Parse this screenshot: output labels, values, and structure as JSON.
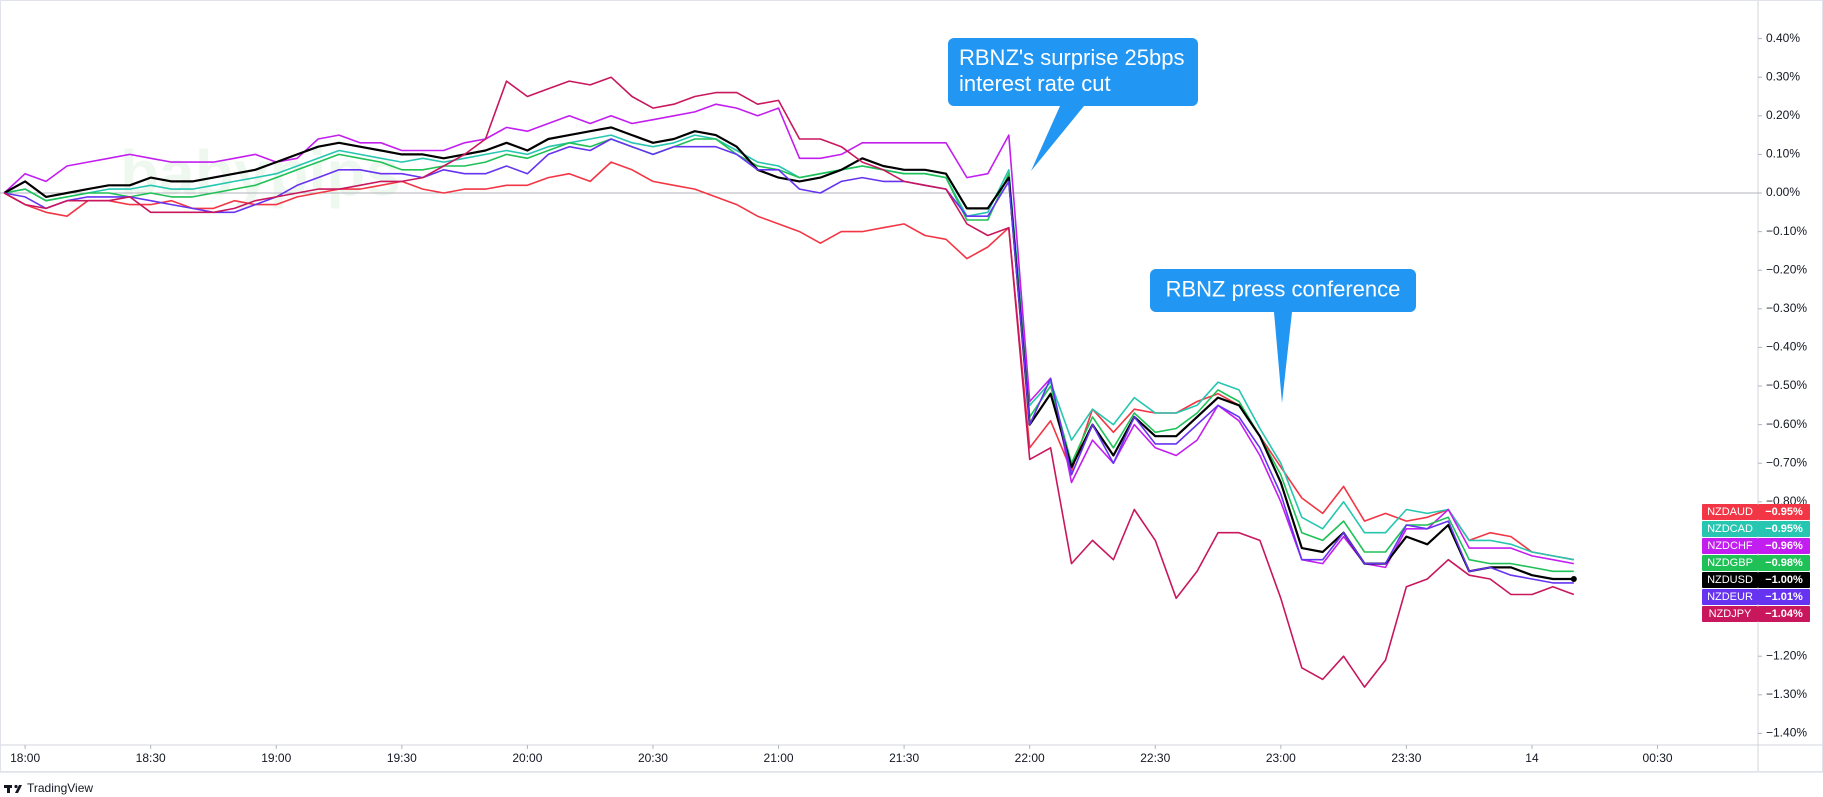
{
  "chart_data": {
    "type": "line",
    "watermark": "babypips",
    "footer": "TradingView",
    "x": [
      -5,
      0,
      5,
      10,
      15,
      20,
      25,
      30,
      35,
      40,
      45,
      50,
      55,
      60,
      65,
      70,
      75,
      80,
      85,
      90,
      95,
      100,
      105,
      110,
      115,
      120,
      125,
      130,
      135,
      140,
      145,
      150,
      155,
      160,
      165,
      170,
      175,
      180,
      185,
      190,
      195,
      200,
      205,
      210,
      215,
      220,
      225,
      230,
      235,
      240,
      245,
      250,
      255,
      260,
      265,
      270,
      275,
      280,
      285,
      290,
      295,
      300,
      305,
      310,
      315,
      320,
      325,
      330,
      335,
      340,
      345,
      350,
      355,
      360,
      365,
      370
    ],
    "xlim": [
      -6,
      414
    ],
    "xticks": [
      {
        "value": 0,
        "label": "18:00"
      },
      {
        "value": 30,
        "label": "18:30"
      },
      {
        "value": 60,
        "label": "19:00"
      },
      {
        "value": 90,
        "label": "19:30"
      },
      {
        "value": 120,
        "label": "20:00"
      },
      {
        "value": 150,
        "label": "20:30"
      },
      {
        "value": 180,
        "label": "21:00"
      },
      {
        "value": 210,
        "label": "21:30"
      },
      {
        "value": 240,
        "label": "22:00"
      },
      {
        "value": 270,
        "label": "22:30"
      },
      {
        "value": 300,
        "label": "23:00"
      },
      {
        "value": 330,
        "label": "23:30"
      },
      {
        "value": 360,
        "label": "14"
      },
      {
        "value": 390,
        "label": "00:30"
      }
    ],
    "ylim": [
      -1.43,
      0.5
    ],
    "yticks": [
      {
        "value": 0.4,
        "label": "0.40%"
      },
      {
        "value": 0.3,
        "label": "0.30%"
      },
      {
        "value": 0.2,
        "label": "0.20%"
      },
      {
        "value": 0.1,
        "label": "0.10%"
      },
      {
        "value": 0,
        "label": "0.00%"
      },
      {
        "value": -0.1,
        "label": "−0.10%"
      },
      {
        "value": -0.2,
        "label": "−0.20%"
      },
      {
        "value": -0.3,
        "label": "−0.30%"
      },
      {
        "value": -0.4,
        "label": "−0.40%"
      },
      {
        "value": -0.5,
        "label": "−0.50%"
      },
      {
        "value": -0.6,
        "label": "−0.60%"
      },
      {
        "value": -0.7,
        "label": "−0.70%"
      },
      {
        "value": -0.8,
        "label": "−0.80%"
      },
      {
        "value": -1.2,
        "label": "−1.20%"
      },
      {
        "value": -1.3,
        "label": "−1.30%"
      },
      {
        "value": -1.4,
        "label": "−1.40%"
      }
    ],
    "grid": false,
    "annotations": [
      {
        "lines": [
          "RBNZ's surprise 25bps",
          "interest rate cut"
        ]
      },
      {
        "lines": [
          "RBNZ press conference"
        ]
      }
    ],
    "series": [
      {
        "name": "NZDAUD",
        "color": "#f23645",
        "last_value_label": "−0.95%",
        "values": [
          0,
          -0.03,
          -0.05,
          -0.06,
          -0.02,
          -0.02,
          -0.03,
          -0.03,
          -0.02,
          -0.04,
          -0.04,
          -0.02,
          -0.03,
          -0.03,
          -0.01,
          0,
          0.01,
          0.01,
          0.02,
          0.03,
          0.01,
          0,
          0.01,
          0.01,
          0.02,
          0.02,
          0.04,
          0.05,
          0.03,
          0.08,
          0.06,
          0.03,
          0.02,
          0.01,
          -0.01,
          -0.03,
          -0.06,
          -0.08,
          -0.1,
          -0.13,
          -0.1,
          -0.1,
          -0.09,
          -0.08,
          -0.11,
          -0.12,
          -0.17,
          -0.14,
          -0.09,
          -0.66,
          -0.59,
          -0.72,
          -0.56,
          -0.62,
          -0.56,
          -0.57,
          -0.57,
          -0.54,
          -0.52,
          -0.55,
          -0.63,
          -0.71,
          -0.79,
          -0.83,
          -0.76,
          -0.85,
          -0.83,
          -0.85,
          -0.84,
          -0.82,
          -0.9,
          -0.88,
          -0.89,
          -0.93,
          -0.94,
          -0.95
        ]
      },
      {
        "name": "NZDCAD",
        "color": "#26c6b0",
        "last_value_label": "−0.95%",
        "values": [
          0,
          0.01,
          -0.02,
          -0.01,
          0,
          0.01,
          0.01,
          0.02,
          0.01,
          0.01,
          0.02,
          0.03,
          0.04,
          0.05,
          0.07,
          0.09,
          0.11,
          0.1,
          0.09,
          0.08,
          0.09,
          0.08,
          0.09,
          0.1,
          0.11,
          0.1,
          0.12,
          0.13,
          0.14,
          0.15,
          0.13,
          0.12,
          0.13,
          0.15,
          0.14,
          0.11,
          0.08,
          0.07,
          0.04,
          0.05,
          0.06,
          0.07,
          0.06,
          0.05,
          0.05,
          0.04,
          -0.06,
          -0.05,
          0.06,
          -0.55,
          -0.49,
          -0.64,
          -0.56,
          -0.6,
          -0.53,
          -0.57,
          -0.57,
          -0.55,
          -0.49,
          -0.51,
          -0.61,
          -0.7,
          -0.84,
          -0.87,
          -0.8,
          -0.88,
          -0.88,
          -0.82,
          -0.83,
          -0.82,
          -0.9,
          -0.9,
          -0.91,
          -0.93,
          -0.94,
          -0.95
        ]
      },
      {
        "name": "NZDCHF",
        "color": "#c31ef0",
        "last_value_label": "−0.96%",
        "values": [
          0,
          0.05,
          0.03,
          0.07,
          0.08,
          0.09,
          0.1,
          0.09,
          0.08,
          0.08,
          0.08,
          0.09,
          0.1,
          0.08,
          0.09,
          0.14,
          0.15,
          0.13,
          0.13,
          0.11,
          0.11,
          0.11,
          0.13,
          0.14,
          0.17,
          0.16,
          0.18,
          0.2,
          0.18,
          0.2,
          0.18,
          0.19,
          0.2,
          0.21,
          0.23,
          0.22,
          0.2,
          0.22,
          0.09,
          0.09,
          0.1,
          0.13,
          0.13,
          0.13,
          0.13,
          0.13,
          0.04,
          0.05,
          0.15,
          -0.54,
          -0.48,
          -0.75,
          -0.64,
          -0.7,
          -0.6,
          -0.66,
          -0.68,
          -0.64,
          -0.55,
          -0.59,
          -0.68,
          -0.8,
          -0.95,
          -0.96,
          -0.89,
          -0.96,
          -0.97,
          -0.87,
          -0.87,
          -0.82,
          -0.92,
          -0.92,
          -0.92,
          -0.94,
          -0.95,
          -0.96
        ]
      },
      {
        "name": "NZDGBP",
        "color": "#1fc157",
        "last_value_label": "−0.98%",
        "values": [
          0,
          0.01,
          -0.02,
          -0.01,
          0,
          0,
          -0.01,
          0,
          -0.01,
          -0.01,
          0,
          0.01,
          0.02,
          0.04,
          0.06,
          0.08,
          0.1,
          0.09,
          0.08,
          0.06,
          0.06,
          0.07,
          0.07,
          0.08,
          0.1,
          0.09,
          0.11,
          0.13,
          0.12,
          0.14,
          0.12,
          0.1,
          0.12,
          0.14,
          0.14,
          0.1,
          0.07,
          0.06,
          0.04,
          0.05,
          0.06,
          0.07,
          0.06,
          0.05,
          0.05,
          0.04,
          -0.07,
          -0.07,
          0.05,
          -0.58,
          -0.5,
          -0.7,
          -0.58,
          -0.66,
          -0.57,
          -0.62,
          -0.61,
          -0.57,
          -0.51,
          -0.54,
          -0.63,
          -0.73,
          -0.88,
          -0.9,
          -0.85,
          -0.93,
          -0.93,
          -0.86,
          -0.86,
          -0.84,
          -0.95,
          -0.96,
          -0.96,
          -0.97,
          -0.98,
          -0.98
        ]
      },
      {
        "name": "NZDUSD",
        "color": "#000000",
        "last_value_label": "−1.00%",
        "values": [
          0,
          0.03,
          -0.01,
          0,
          0.01,
          0.02,
          0.02,
          0.04,
          0.03,
          0.03,
          0.04,
          0.05,
          0.06,
          0.08,
          0.1,
          0.12,
          0.13,
          0.12,
          0.11,
          0.1,
          0.1,
          0.09,
          0.1,
          0.11,
          0.13,
          0.11,
          0.14,
          0.15,
          0.16,
          0.17,
          0.15,
          0.13,
          0.14,
          0.16,
          0.15,
          0.12,
          0.06,
          0.04,
          0.03,
          0.04,
          0.06,
          0.09,
          0.07,
          0.06,
          0.06,
          0.05,
          -0.04,
          -0.04,
          0.04,
          -0.6,
          -0.52,
          -0.71,
          -0.6,
          -0.68,
          -0.58,
          -0.63,
          -0.63,
          -0.58,
          -0.53,
          -0.55,
          -0.63,
          -0.75,
          -0.92,
          -0.93,
          -0.88,
          -0.96,
          -0.96,
          -0.89,
          -0.91,
          -0.86,
          -0.98,
          -0.97,
          -0.97,
          -0.99,
          -1.0,
          -1.0
        ]
      },
      {
        "name": "NZDEUR",
        "color": "#6634f0",
        "last_value_label": "−1.01%",
        "values": [
          0,
          -0.01,
          -0.04,
          -0.02,
          -0.01,
          -0.01,
          -0.01,
          -0.02,
          -0.03,
          -0.04,
          -0.05,
          -0.05,
          -0.03,
          -0.01,
          0.02,
          0.04,
          0.06,
          0.06,
          0.05,
          0.05,
          0.04,
          0.06,
          0.05,
          0.05,
          0.07,
          0.05,
          0.1,
          0.12,
          0.11,
          0.14,
          0.12,
          0.1,
          0.12,
          0.12,
          0.12,
          0.1,
          0.06,
          0.06,
          0.01,
          0,
          0.03,
          0.04,
          0.03,
          0.03,
          0.02,
          0.01,
          -0.06,
          -0.06,
          0.03,
          -0.6,
          -0.48,
          -0.73,
          -0.6,
          -0.7,
          -0.58,
          -0.65,
          -0.65,
          -0.6,
          -0.55,
          -0.58,
          -0.66,
          -0.78,
          -0.95,
          -0.95,
          -0.88,
          -0.96,
          -0.96,
          -0.86,
          -0.87,
          -0.85,
          -0.98,
          -0.97,
          -0.99,
          -1.0,
          -1.01,
          -1.01
        ]
      },
      {
        "name": "NZDJPY",
        "color": "#c8175d",
        "last_value_label": "−1.04%",
        "values": [
          0,
          -0.03,
          -0.04,
          -0.02,
          -0.02,
          -0.02,
          -0.01,
          -0.05,
          -0.05,
          -0.05,
          -0.05,
          -0.04,
          -0.02,
          -0.01,
          0,
          0.01,
          0.01,
          0.02,
          0.03,
          0.03,
          0.04,
          0.07,
          0.1,
          0.14,
          0.29,
          0.25,
          0.27,
          0.29,
          0.28,
          0.3,
          0.25,
          0.22,
          0.23,
          0.25,
          0.26,
          0.26,
          0.23,
          0.24,
          0.14,
          0.14,
          0.12,
          0.08,
          0.06,
          0.03,
          0.02,
          0.01,
          -0.08,
          -0.11,
          -0.09,
          -0.69,
          -0.66,
          -0.96,
          -0.9,
          -0.95,
          -0.82,
          -0.9,
          -1.05,
          -0.98,
          -0.88,
          -0.88,
          -0.9,
          -1.05,
          -1.23,
          -1.26,
          -1.2,
          -1.28,
          -1.21,
          -1.02,
          -1.0,
          -0.95,
          -0.99,
          -1.0,
          -1.04,
          -1.04,
          -1.02,
          -1.04
        ]
      }
    ]
  }
}
